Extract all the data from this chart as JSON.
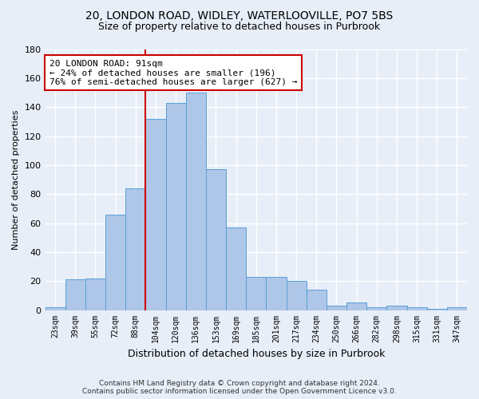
{
  "title_line1": "20, LONDON ROAD, WIDLEY, WATERLOOVILLE, PO7 5BS",
  "title_line2": "Size of property relative to detached houses in Purbrook",
  "xlabel": "Distribution of detached houses by size in Purbrook",
  "ylabel": "Number of detached properties",
  "categories": [
    "23sqm",
    "39sqm",
    "55sqm",
    "72sqm",
    "88sqm",
    "104sqm",
    "120sqm",
    "136sqm",
    "153sqm",
    "169sqm",
    "185sqm",
    "201sqm",
    "217sqm",
    "234sqm",
    "250sqm",
    "266sqm",
    "282sqm",
    "298sqm",
    "315sqm",
    "331sqm",
    "347sqm"
  ],
  "values": [
    2,
    21,
    22,
    66,
    84,
    132,
    143,
    150,
    97,
    57,
    23,
    23,
    20,
    14,
    3,
    5,
    2,
    3,
    2,
    1,
    2
  ],
  "bar_color": "#aec6e8",
  "bar_edge_color": "#5a9fd4",
  "background_color": "#e8eef8",
  "grid_color": "#d0d8e8",
  "annotation_text": "20 LONDON ROAD: 91sqm\n← 24% of detached houses are smaller (196)\n76% of semi-detached houses are larger (627) →",
  "annotation_box_color": "#ffffff",
  "annotation_box_edge": "#cc0000",
  "subject_line_color": "#cc0000",
  "ylim": [
    0,
    180
  ],
  "yticks": [
    0,
    20,
    40,
    60,
    80,
    100,
    120,
    140,
    160,
    180
  ],
  "footer_line1": "Contains HM Land Registry data © Crown copyright and database right 2024.",
  "footer_line2": "Contains public sector information licensed under the Open Government Licence v3.0."
}
